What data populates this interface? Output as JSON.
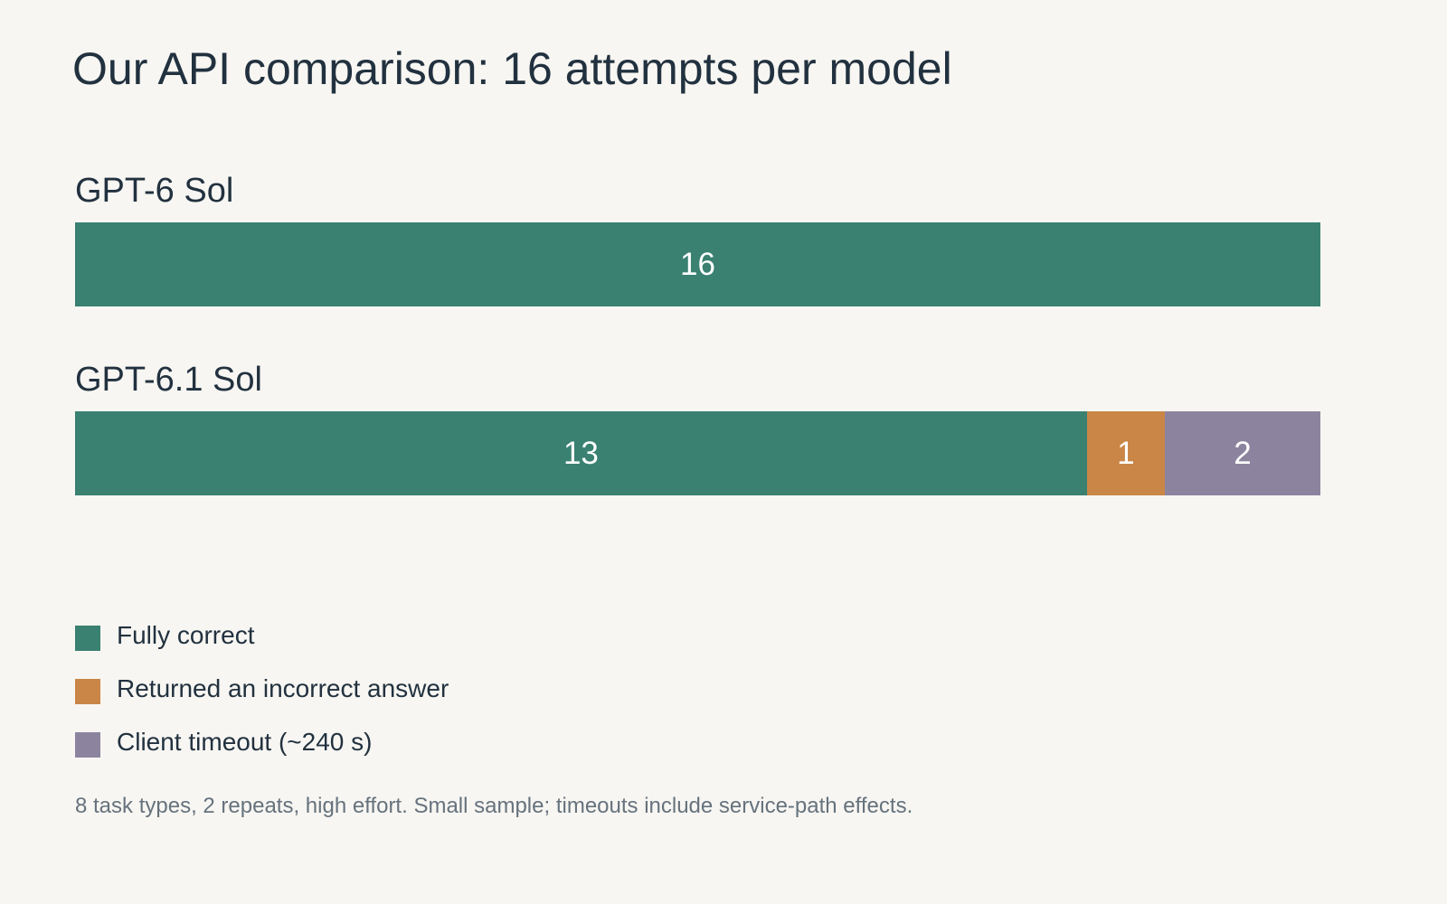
{
  "title": "Our API comparison: 16 attempts per model",
  "chart_data": {
    "type": "bar",
    "orientation": "horizontal",
    "stacked": true,
    "title": "Our API comparison: 16 attempts per model",
    "categories": [
      "GPT-6 Sol",
      "GPT-6.1 Sol"
    ],
    "series": [
      {
        "name": "Fully correct",
        "color": "#3a8172",
        "values": [
          16,
          13
        ]
      },
      {
        "name": "Returned an incorrect answer",
        "color": "#c98647",
        "values": [
          0,
          1
        ]
      },
      {
        "name": "Client timeout (~240 s)",
        "color": "#8c849f",
        "values": [
          0,
          2
        ]
      }
    ],
    "total": 16,
    "legend_position": "bottom-left",
    "grid": false
  },
  "footnote": "8 task types, 2 repeats, high effort. Small sample; timeouts include service-path effects."
}
